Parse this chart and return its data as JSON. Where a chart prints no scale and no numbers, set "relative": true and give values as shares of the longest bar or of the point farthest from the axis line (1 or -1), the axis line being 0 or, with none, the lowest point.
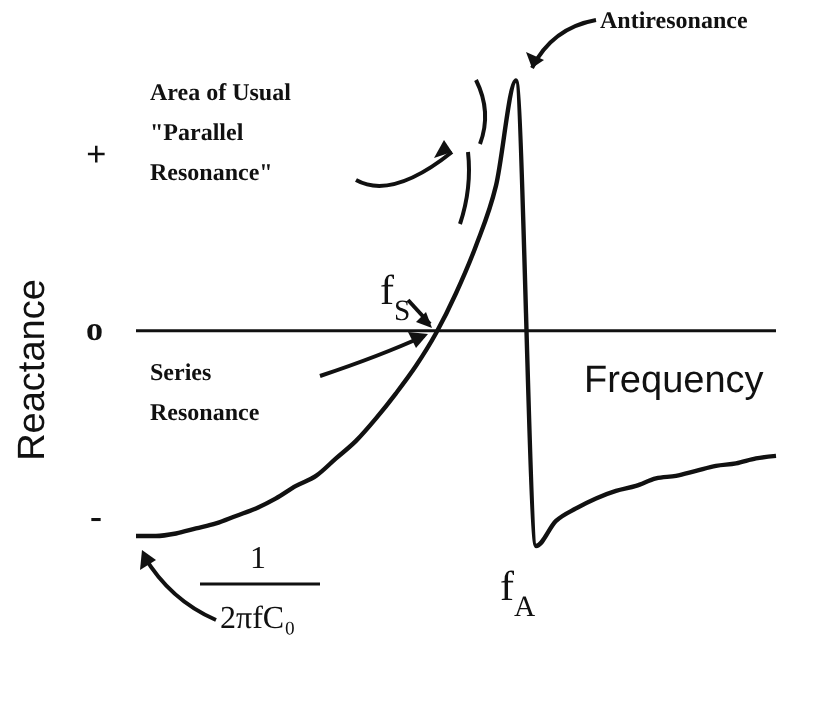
{
  "chart_data": {
    "type": "line",
    "xlabel": "Frequency",
    "ylabel": "Reactance",
    "categories": [
      null,
      null,
      null,
      null,
      null,
      null,
      null,
      null,
      null,
      null,
      null,
      null,
      null,
      null,
      null,
      null,
      null,
      null,
      null,
      null,
      null,
      null,
      null,
      null,
      null,
      null,
      null,
      null,
      null,
      null,
      null,
      null,
      null
    ],
    "series": [
      {
        "color": "#111111",
        "values": [
          -0.82,
          -0.82,
          -0.81,
          -0.79,
          -0.77,
          -0.74,
          -0.71,
          -0.67,
          -0.62,
          -0.58,
          -0.51,
          -0.44,
          -0.35,
          -0.25,
          -0.14,
          -0.01,
          0.15,
          0.34,
          0.58,
          1,
          -0.86,
          -0.76,
          -0.71,
          -0.67,
          -0.64,
          -0.62,
          -0.59,
          -0.58,
          -0.56,
          -0.54,
          -0.53,
          -0.51,
          -0.5
        ]
      }
    ],
    "relative": true,
    "line_style": "solid",
    "annotations": [
      "Antiresonance",
      "Area of Usual\n\"Parallel\nResonance\"",
      "f$_{S}$",
      "Series\nResonance",
      "f$_{A}$",
      "1",
      "2πfC₀",
      "+",
      "o",
      "-"
    ]
  }
}
